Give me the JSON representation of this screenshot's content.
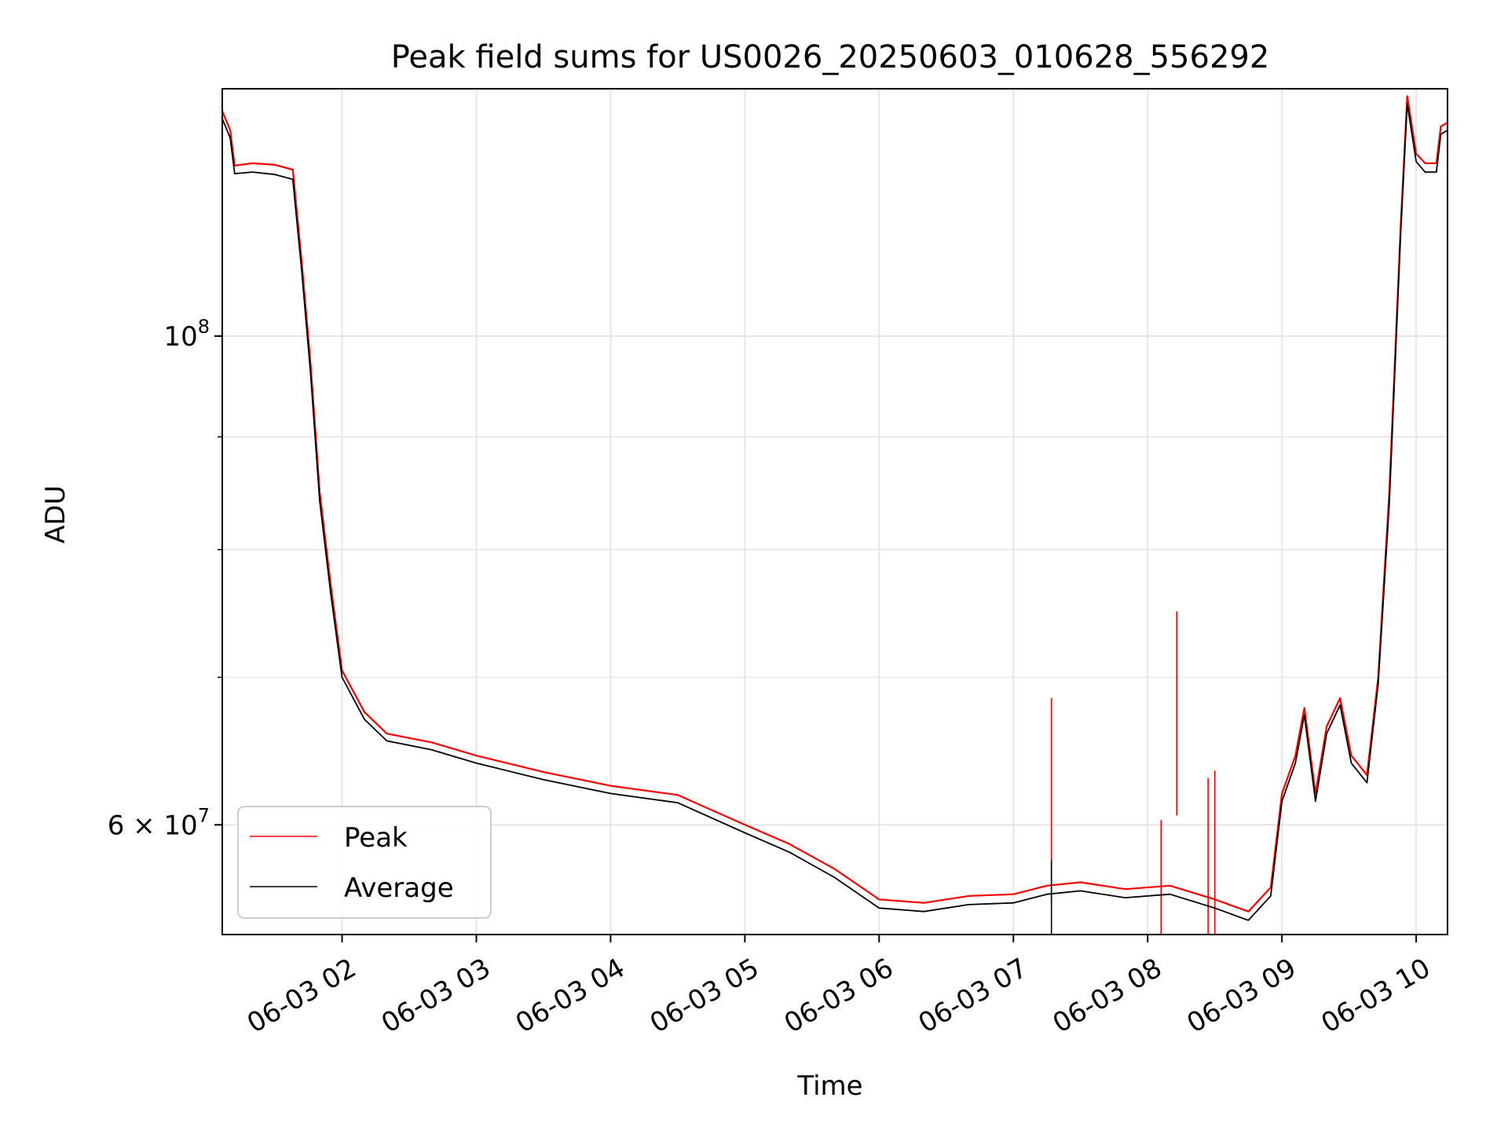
{
  "chart_data": {
    "type": "line",
    "title": "Peak field sums for US0026_20250603_010628_556292",
    "xlabel": "Time",
    "ylabel": "ADU",
    "x_axis": {
      "kind": "datetime",
      "range": [
        "2025-06-03T01:06:28",
        "2025-06-03T10:14:00"
      ],
      "ticks": [
        {
          "value": "2025-06-03T02:00:00",
          "label": "06-03 02"
        },
        {
          "value": "2025-06-03T03:00:00",
          "label": "06-03 03"
        },
        {
          "value": "2025-06-03T04:00:00",
          "label": "06-03 04"
        },
        {
          "value": "2025-06-03T05:00:00",
          "label": "06-03 05"
        },
        {
          "value": "2025-06-03T06:00:00",
          "label": "06-03 06"
        },
        {
          "value": "2025-06-03T07:00:00",
          "label": "06-03 07"
        },
        {
          "value": "2025-06-03T08:00:00",
          "label": "06-03 08"
        },
        {
          "value": "2025-06-03T09:00:00",
          "label": "06-03 09"
        },
        {
          "value": "2025-06-03T10:00:00",
          "label": "06-03 10"
        }
      ]
    },
    "y_axis": {
      "scale": "log",
      "range": [
        53500000,
        129500000
      ],
      "major_ticks": [
        {
          "value": 100000000,
          "base": "10",
          "exponent": "8"
        },
        {
          "value": 60000000,
          "base": "6 × 10",
          "exponent": "7"
        }
      ],
      "minor_ticks": [
        70000000,
        80000000,
        90000000
      ]
    },
    "grid": true,
    "legend": {
      "position": "lower-left"
    },
    "series": [
      {
        "name": "Peak",
        "color": "#ff0000",
        "points": [
          [
            "2025-06-03T01:06:28",
            126500000
          ],
          [
            "2025-06-03T01:10:00",
            124000000
          ],
          [
            "2025-06-03T01:12:00",
            119500000
          ],
          [
            "2025-06-03T01:20:00",
            119800000
          ],
          [
            "2025-06-03T01:30:00",
            119600000
          ],
          [
            "2025-06-03T01:38:00",
            119000000
          ],
          [
            "2025-06-03T01:42:00",
            108000000
          ],
          [
            "2025-06-03T01:46:00",
            97000000
          ],
          [
            "2025-06-03T01:50:00",
            85000000
          ],
          [
            "2025-06-03T01:55:00",
            77000000
          ],
          [
            "2025-06-03T02:00:00",
            70500000
          ],
          [
            "2025-06-03T02:10:00",
            67500000
          ],
          [
            "2025-06-03T02:20:00",
            66000000
          ],
          [
            "2025-06-03T02:40:00",
            65400000
          ],
          [
            "2025-06-03T03:00:00",
            64500000
          ],
          [
            "2025-06-03T03:30:00",
            63400000
          ],
          [
            "2025-06-03T04:00:00",
            62500000
          ],
          [
            "2025-06-03T04:30:00",
            61900000
          ],
          [
            "2025-06-03T05:00:00",
            60000000
          ],
          [
            "2025-06-03T05:20:00",
            58800000
          ],
          [
            "2025-06-03T05:40:00",
            57300000
          ],
          [
            "2025-06-03T06:00:00",
            55500000
          ],
          [
            "2025-06-03T06:20:00",
            55300000
          ],
          [
            "2025-06-03T06:40:00",
            55700000
          ],
          [
            "2025-06-03T07:00:00",
            55800000
          ],
          [
            "2025-06-03T07:15:00",
            56300000
          ],
          [
            "2025-06-03T07:30:00",
            56500000
          ],
          [
            "2025-06-03T07:50:00",
            56100000
          ],
          [
            "2025-06-03T08:10:00",
            56300000
          ],
          [
            "2025-06-03T08:30:00",
            55500000
          ],
          [
            "2025-06-03T08:45:00",
            54800000
          ],
          [
            "2025-06-03T08:55:00",
            56200000
          ],
          [
            "2025-06-03T09:00:00",
            62000000
          ],
          [
            "2025-06-03T09:06:00",
            64500000
          ],
          [
            "2025-06-03T09:10:00",
            67800000
          ],
          [
            "2025-06-03T09:15:00",
            62000000
          ],
          [
            "2025-06-03T09:20:00",
            66500000
          ],
          [
            "2025-06-03T09:26:00",
            68500000
          ],
          [
            "2025-06-03T09:31:00",
            64500000
          ],
          [
            "2025-06-03T09:38:00",
            63200000
          ],
          [
            "2025-06-03T09:43:00",
            70000000
          ],
          [
            "2025-06-03T09:48:00",
            85000000
          ],
          [
            "2025-06-03T09:53:00",
            112000000
          ],
          [
            "2025-06-03T09:56:00",
            128500000
          ],
          [
            "2025-06-03T10:00:00",
            121000000
          ],
          [
            "2025-06-03T10:04:00",
            119800000
          ],
          [
            "2025-06-03T10:09:00",
            119800000
          ],
          [
            "2025-06-03T10:11:00",
            124500000
          ],
          [
            "2025-06-03T10:14:00",
            125000000
          ]
        ],
        "spikes": [
          [
            "2025-06-03T07:17:00",
            68500000
          ],
          [
            "2025-06-03T08:06:00",
            60300000
          ],
          [
            "2025-06-03T08:13:00",
            75000000
          ],
          [
            "2025-06-03T08:27:00",
            63000000
          ],
          [
            "2025-06-03T08:30:00",
            63500000
          ]
        ]
      },
      {
        "name": "Average",
        "color": "#000000",
        "points": [
          [
            "2025-06-03T01:06:28",
            125500000
          ],
          [
            "2025-06-03T01:10:00",
            123000000
          ],
          [
            "2025-06-03T01:12:00",
            118500000
          ],
          [
            "2025-06-03T01:20:00",
            118700000
          ],
          [
            "2025-06-03T01:30:00",
            118400000
          ],
          [
            "2025-06-03T01:38:00",
            117800000
          ],
          [
            "2025-06-03T01:42:00",
            107000000
          ],
          [
            "2025-06-03T01:46:00",
            96000000
          ],
          [
            "2025-06-03T01:50:00",
            84200000
          ],
          [
            "2025-06-03T01:55:00",
            76300000
          ],
          [
            "2025-06-03T02:00:00",
            70000000
          ],
          [
            "2025-06-03T02:10:00",
            67000000
          ],
          [
            "2025-06-03T02:20:00",
            65500000
          ],
          [
            "2025-06-03T02:40:00",
            64900000
          ],
          [
            "2025-06-03T03:00:00",
            64000000
          ],
          [
            "2025-06-03T03:30:00",
            62900000
          ],
          [
            "2025-06-03T04:00:00",
            62000000
          ],
          [
            "2025-06-03T04:30:00",
            61400000
          ],
          [
            "2025-06-03T05:00:00",
            59500000
          ],
          [
            "2025-06-03T05:20:00",
            58300000
          ],
          [
            "2025-06-03T05:40:00",
            56800000
          ],
          [
            "2025-06-03T06:00:00",
            55000000
          ],
          [
            "2025-06-03T06:20:00",
            54800000
          ],
          [
            "2025-06-03T06:40:00",
            55200000
          ],
          [
            "2025-06-03T07:00:00",
            55300000
          ],
          [
            "2025-06-03T07:15:00",
            55800000
          ],
          [
            "2025-06-03T07:30:00",
            56000000
          ],
          [
            "2025-06-03T07:50:00",
            55600000
          ],
          [
            "2025-06-03T08:10:00",
            55800000
          ],
          [
            "2025-06-03T08:30:00",
            55000000
          ],
          [
            "2025-06-03T08:45:00",
            54300000
          ],
          [
            "2025-06-03T08:55:00",
            55700000
          ],
          [
            "2025-06-03T09:00:00",
            61500000
          ],
          [
            "2025-06-03T09:06:00",
            64000000
          ],
          [
            "2025-06-03T09:10:00",
            67300000
          ],
          [
            "2025-06-03T09:15:00",
            61500000
          ],
          [
            "2025-06-03T09:20:00",
            66000000
          ],
          [
            "2025-06-03T09:26:00",
            68000000
          ],
          [
            "2025-06-03T09:31:00",
            64000000
          ],
          [
            "2025-06-03T09:38:00",
            62700000
          ],
          [
            "2025-06-03T09:43:00",
            69500000
          ],
          [
            "2025-06-03T09:48:00",
            84000000
          ],
          [
            "2025-06-03T09:53:00",
            111000000
          ],
          [
            "2025-06-03T09:56:00",
            127500000
          ],
          [
            "2025-06-03T10:00:00",
            120000000
          ],
          [
            "2025-06-03T10:04:00",
            118700000
          ],
          [
            "2025-06-03T10:09:00",
            118700000
          ],
          [
            "2025-06-03T10:11:00",
            123500000
          ],
          [
            "2025-06-03T10:14:00",
            124000000
          ]
        ],
        "spikes": [
          [
            "2025-06-03T07:17:00",
            57800000
          ]
        ]
      }
    ]
  }
}
